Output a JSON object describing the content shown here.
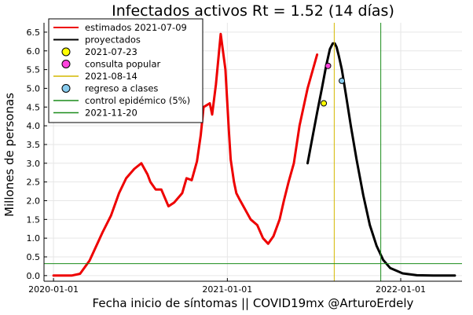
{
  "chart_data": {
    "type": "line",
    "title": "Infectados activos  Rt = 1.52 (14 días)",
    "xlabel": "Fecha inicio de síntomas || COVID19mx @ArturoErdely",
    "ylabel": "Millones de personas",
    "xlim": [
      "2019-12-12",
      "2022-05-10"
    ],
    "ylim": [
      -0.15,
      6.75
    ],
    "xticks": [
      {
        "date": "2020-01-01",
        "label": "2020-01-01"
      },
      {
        "date": "2021-01-01",
        "label": "2021-01-01"
      },
      {
        "date": "2022-01-01",
        "label": "2022-01-01"
      }
    ],
    "yticks": [
      0.0,
      0.5,
      1.0,
      1.5,
      2.0,
      2.5,
      3.0,
      3.5,
      4.0,
      4.5,
      5.0,
      5.5,
      6.0,
      6.5
    ],
    "grid": true,
    "legend_position": "top-left",
    "series": [
      {
        "name": "estimados 2021-07-09",
        "color": "#ee0000",
        "style": "line",
        "x": [
          "2020-01-01",
          "2020-02-08",
          "2020-02-26",
          "2020-03-17",
          "2020-04-13",
          "2020-05-01",
          "2020-05-18",
          "2020-06-02",
          "2020-06-19",
          "2020-07-04",
          "2020-07-17",
          "2020-07-23",
          "2020-08-03",
          "2020-08-15",
          "2020-08-30",
          "2020-09-11",
          "2020-09-28",
          "2020-10-07",
          "2020-10-18",
          "2020-10-29",
          "2020-11-06",
          "2020-11-12",
          "2020-11-25",
          "2020-11-30",
          "2020-12-08",
          "2020-12-18",
          "2020-12-28",
          "2021-01-04",
          "2021-01-08",
          "2021-01-15",
          "2021-01-20",
          "2021-01-26",
          "2021-02-06",
          "2021-02-19",
          "2021-03-05",
          "2021-03-17",
          "2021-03-28",
          "2021-04-08",
          "2021-04-21",
          "2021-04-30",
          "2021-05-10",
          "2021-05-21",
          "2021-06-02",
          "2021-06-19",
          "2021-07-09"
        ],
        "y": [
          0.0,
          0.0,
          0.05,
          0.4,
          1.15,
          1.6,
          2.2,
          2.6,
          2.85,
          3.0,
          2.7,
          2.5,
          2.3,
          2.3,
          1.85,
          1.95,
          2.2,
          2.6,
          2.55,
          3.05,
          3.75,
          4.5,
          4.6,
          4.3,
          5.1,
          6.45,
          5.5,
          3.9,
          3.1,
          2.5,
          2.2,
          2.05,
          1.8,
          1.5,
          1.35,
          1.0,
          0.85,
          1.05,
          1.5,
          2.0,
          2.5,
          3.0,
          4.0,
          5.0,
          5.9
        ]
      },
      {
        "name": "proyectados",
        "color": "#000000",
        "style": "line",
        "x": [
          "2021-06-19",
          "2021-06-30",
          "2021-07-09",
          "2021-07-19",
          "2021-07-28",
          "2021-08-05",
          "2021-08-11",
          "2021-08-15",
          "2021-08-19",
          "2021-08-24",
          "2021-08-30",
          "2021-09-08",
          "2021-09-18",
          "2021-09-30",
          "2021-10-14",
          "2021-10-28",
          "2021-11-11",
          "2021-11-25",
          "2021-12-10",
          "2022-01-05",
          "2022-02-04",
          "2022-03-10",
          "2022-04-25"
        ],
        "y": [
          3.0,
          3.75,
          4.35,
          5.0,
          5.6,
          6.05,
          6.2,
          6.2,
          6.1,
          5.85,
          5.5,
          4.8,
          4.0,
          3.1,
          2.15,
          1.35,
          0.8,
          0.42,
          0.2,
          0.06,
          0.01,
          0.0,
          0.0
        ]
      },
      {
        "name": "2021-07-23",
        "color": "#ffff00",
        "style": "marker",
        "x": [
          "2021-07-23"
        ],
        "y": [
          4.6
        ]
      },
      {
        "name": "consulta popular",
        "color": "#ff44dd",
        "style": "marker",
        "x": [
          "2021-08-01"
        ],
        "y": [
          5.6
        ]
      },
      {
        "name": "2021-08-14",
        "color": "#d4b800",
        "style": "vline",
        "x": [
          "2021-08-14"
        ]
      },
      {
        "name": "regreso a clases",
        "color": "#88ccee",
        "style": "marker",
        "x": [
          "2021-08-30"
        ],
        "y": [
          5.2
        ]
      },
      {
        "name": "control epidémico (5%)",
        "color": "#1a8c1a",
        "style": "hline",
        "y": [
          0.32
        ]
      },
      {
        "name": "2021-11-20",
        "color": "#1a8c1a",
        "style": "vline",
        "x": [
          "2021-11-20"
        ]
      }
    ]
  }
}
